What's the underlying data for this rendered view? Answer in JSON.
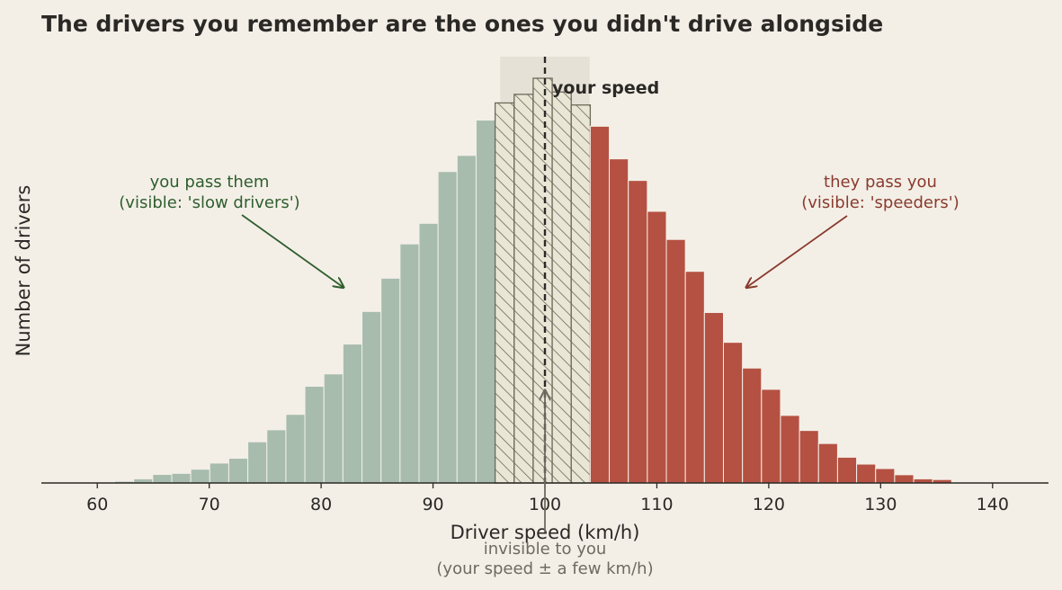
{
  "colors": {
    "background": "#f3efe7",
    "slow": "#a8bcae",
    "fast": "#b55142",
    "band_fill": "#eae6d6",
    "band_hatch": "#6b6a5a",
    "band_shade": "#e6e1d6",
    "slow_text": "#2f5e2e",
    "fast_text": "#8a3a2d",
    "muted_text": "#6e6a60",
    "dark": "#2b2926"
  },
  "chart_data": {
    "type": "bar",
    "title": "The drivers you remember are the ones you didn't drive alongside",
    "xlabel": "Driver speed (km/h)",
    "ylabel": "Number of drivers",
    "xlim": [
      55,
      145
    ],
    "ylim": [
      0,
      1.18
    ],
    "x_ticks": [
      60,
      70,
      80,
      90,
      100,
      110,
      120,
      130,
      140
    ],
    "grid": false,
    "bin_width": 1.7,
    "bins": [
      {
        "x": 62.4,
        "value": 0.005,
        "group": "slow"
      },
      {
        "x": 64.1,
        "value": 0.012,
        "group": "slow"
      },
      {
        "x": 65.8,
        "value": 0.025,
        "group": "slow"
      },
      {
        "x": 67.5,
        "value": 0.028,
        "group": "slow"
      },
      {
        "x": 69.2,
        "value": 0.04,
        "group": "slow"
      },
      {
        "x": 70.9,
        "value": 0.058,
        "group": "slow"
      },
      {
        "x": 72.6,
        "value": 0.072,
        "group": "slow"
      },
      {
        "x": 74.3,
        "value": 0.12,
        "group": "slow"
      },
      {
        "x": 76.0,
        "value": 0.155,
        "group": "slow"
      },
      {
        "x": 77.7,
        "value": 0.2,
        "group": "slow"
      },
      {
        "x": 79.4,
        "value": 0.282,
        "group": "slow"
      },
      {
        "x": 81.1,
        "value": 0.318,
        "group": "slow"
      },
      {
        "x": 82.8,
        "value": 0.405,
        "group": "slow"
      },
      {
        "x": 84.5,
        "value": 0.5,
        "group": "slow"
      },
      {
        "x": 86.2,
        "value": 0.597,
        "group": "slow"
      },
      {
        "x": 87.9,
        "value": 0.697,
        "group": "slow"
      },
      {
        "x": 89.6,
        "value": 0.757,
        "group": "slow"
      },
      {
        "x": 91.3,
        "value": 0.908,
        "group": "slow"
      },
      {
        "x": 93.0,
        "value": 0.955,
        "group": "slow"
      },
      {
        "x": 94.7,
        "value": 1.058,
        "group": "slow"
      },
      {
        "x": 96.4,
        "value": 1.108,
        "group": "band"
      },
      {
        "x": 98.1,
        "value": 1.133,
        "group": "band"
      },
      {
        "x": 99.8,
        "value": 1.18,
        "group": "band"
      },
      {
        "x": 101.5,
        "value": 1.14,
        "group": "band"
      },
      {
        "x": 103.2,
        "value": 1.102,
        "group": "band"
      },
      {
        "x": 104.9,
        "value": 1.04,
        "group": "fast"
      },
      {
        "x": 106.6,
        "value": 0.945,
        "group": "fast"
      },
      {
        "x": 108.3,
        "value": 0.882,
        "group": "fast"
      },
      {
        "x": 110.0,
        "value": 0.792,
        "group": "fast"
      },
      {
        "x": 111.7,
        "value": 0.71,
        "group": "fast"
      },
      {
        "x": 113.4,
        "value": 0.617,
        "group": "fast"
      },
      {
        "x": 115.1,
        "value": 0.497,
        "group": "fast"
      },
      {
        "x": 116.8,
        "value": 0.41,
        "group": "fast"
      },
      {
        "x": 118.5,
        "value": 0.335,
        "group": "fast"
      },
      {
        "x": 120.2,
        "value": 0.273,
        "group": "fast"
      },
      {
        "x": 121.9,
        "value": 0.197,
        "group": "fast"
      },
      {
        "x": 123.6,
        "value": 0.153,
        "group": "fast"
      },
      {
        "x": 125.3,
        "value": 0.115,
        "group": "fast"
      },
      {
        "x": 127.0,
        "value": 0.075,
        "group": "fast"
      },
      {
        "x": 128.7,
        "value": 0.055,
        "group": "fast"
      },
      {
        "x": 130.4,
        "value": 0.042,
        "group": "fast"
      },
      {
        "x": 132.1,
        "value": 0.024,
        "group": "fast"
      },
      {
        "x": 133.8,
        "value": 0.012,
        "group": "fast"
      },
      {
        "x": 135.5,
        "value": 0.01,
        "group": "fast"
      }
    ],
    "your_speed": 100,
    "band_range": [
      96,
      104
    ],
    "annotations": {
      "slow_label": [
        "you pass them",
        "(visible: 'slow drivers')"
      ],
      "slow_arrow_target": [
        82,
        0.57
      ],
      "fast_label": [
        "they pass you",
        "(visible: 'speeders')"
      ],
      "fast_arrow_target": [
        118,
        0.57
      ],
      "your_speed_label": "your speed",
      "invisible_label": [
        "invisible to you",
        "(your speed ± a few km/h)"
      ]
    }
  }
}
